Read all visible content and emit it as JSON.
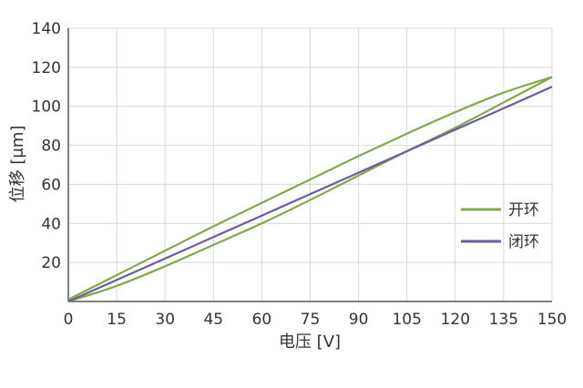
{
  "chart_data": {
    "type": "line",
    "xlabel": "电压 [V]",
    "ylabel": "位移 [μm]",
    "xlim": [
      0,
      150
    ],
    "ylim": [
      0,
      140
    ],
    "x_ticks": [
      "0",
      "15",
      "30",
      "45",
      "60",
      "75",
      "90",
      "105",
      "120",
      "135",
      "150"
    ],
    "y_ticks": [
      "20",
      "40",
      "60",
      "80",
      "100",
      "120",
      "140"
    ],
    "grid": true,
    "legend_position": "right",
    "series": [
      {
        "name": "开环",
        "color": "#82a84a",
        "segments": [
          {
            "part": "upper branch",
            "x": [
              0,
              15,
              30,
              45,
              60,
              75,
              90,
              105,
              120,
              135,
              150
            ],
            "y": [
              1,
              13.5,
              26,
              38.5,
              50.5,
              62.5,
              74.5,
              86,
              97,
              107,
              115
            ]
          },
          {
            "part": "lower branch",
            "x": [
              0,
              15,
              30,
              45,
              60,
              75,
              90,
              105,
              120,
              135,
              150
            ],
            "y": [
              0,
              8,
              18,
              29,
              40,
              52,
              64.5,
              77,
              89,
              102,
              115
            ]
          }
        ]
      },
      {
        "name": "闭环",
        "color": "#6e5aa0",
        "x": [
          0,
          15,
          30,
          45,
          60,
          75,
          90,
          105,
          120,
          135,
          150
        ],
        "y": [
          0,
          11,
          22,
          33,
          44,
          55,
          66,
          77,
          88,
          99,
          110
        ]
      }
    ]
  }
}
